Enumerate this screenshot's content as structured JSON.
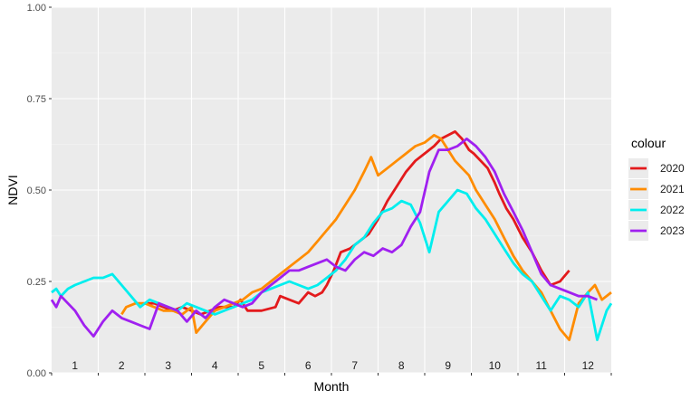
{
  "chart_data": {
    "type": "line",
    "xlabel": "Month",
    "ylabel": "NDVI",
    "ylim": [
      0,
      1
    ],
    "xlim": [
      0,
      12
    ],
    "yticks": [
      0,
      0.25,
      0.5,
      0.75,
      1
    ],
    "ytick_labels": [
      "0.00",
      "0.25",
      "0.50",
      "0.75",
      "1.00"
    ],
    "month_labels": [
      "1",
      "2",
      "3",
      "4",
      "5",
      "6",
      "7",
      "8",
      "9",
      "10",
      "11",
      "12"
    ],
    "grid": true,
    "legend": {
      "title": "colour",
      "position": "right"
    },
    "series": [
      {
        "name": "2020",
        "color": "#e31a1c",
        "x": [
          2.0,
          2.2,
          2.4,
          2.6,
          2.8,
          3.0,
          3.2,
          3.4,
          3.6,
          3.9,
          4.05,
          4.2,
          4.5,
          4.8,
          4.9,
          5.1,
          5.3,
          5.5,
          5.65,
          5.8,
          5.9,
          6.05,
          6.2,
          6.4,
          6.6,
          6.8,
          7.0,
          7.2,
          7.4,
          7.6,
          7.8,
          8.0,
          8.2,
          8.35,
          8.5,
          8.65,
          8.8,
          8.95,
          9.05,
          9.2,
          9.35,
          9.5,
          9.6,
          9.75,
          9.9,
          10.1,
          10.3,
          10.5,
          10.7,
          10.9,
          11.1
        ],
        "y": [
          0.19,
          0.19,
          0.18,
          0.17,
          0.18,
          0.17,
          0.16,
          0.17,
          0.18,
          0.18,
          0.2,
          0.17,
          0.17,
          0.18,
          0.21,
          0.2,
          0.19,
          0.22,
          0.21,
          0.22,
          0.24,
          0.28,
          0.33,
          0.34,
          0.36,
          0.38,
          0.42,
          0.47,
          0.51,
          0.55,
          0.58,
          0.6,
          0.62,
          0.64,
          0.65,
          0.66,
          0.64,
          0.61,
          0.6,
          0.58,
          0.56,
          0.52,
          0.49,
          0.45,
          0.42,
          0.37,
          0.33,
          0.28,
          0.24,
          0.25,
          0.28
        ]
      },
      {
        "name": "2021",
        "color": "#ff8c00",
        "x": [
          1.5,
          1.6,
          1.8,
          2.0,
          2.2,
          2.4,
          2.6,
          2.8,
          3.0,
          3.1,
          3.3,
          3.5,
          3.7,
          3.9,
          4.1,
          4.3,
          4.5,
          4.7,
          4.9,
          5.1,
          5.3,
          5.5,
          5.7,
          5.9,
          6.1,
          6.3,
          6.5,
          6.7,
          6.85,
          7.0,
          7.2,
          7.4,
          7.6,
          7.8,
          8.0,
          8.2,
          8.35,
          8.5,
          8.65,
          8.8,
          8.95,
          9.1,
          9.3,
          9.5,
          9.7,
          9.9,
          10.1,
          10.3,
          10.5,
          10.7,
          10.9,
          11.1,
          11.3,
          11.5,
          11.65,
          11.8,
          12.0
        ],
        "y": [
          0.16,
          0.18,
          0.19,
          0.19,
          0.18,
          0.17,
          0.17,
          0.16,
          0.18,
          0.11,
          0.14,
          0.17,
          0.18,
          0.19,
          0.2,
          0.22,
          0.23,
          0.25,
          0.27,
          0.29,
          0.31,
          0.33,
          0.36,
          0.39,
          0.42,
          0.46,
          0.5,
          0.55,
          0.59,
          0.54,
          0.56,
          0.58,
          0.6,
          0.62,
          0.63,
          0.65,
          0.64,
          0.61,
          0.58,
          0.56,
          0.54,
          0.5,
          0.46,
          0.42,
          0.37,
          0.32,
          0.28,
          0.25,
          0.22,
          0.17,
          0.12,
          0.09,
          0.19,
          0.22,
          0.24,
          0.2,
          0.22
        ]
      },
      {
        "name": "2022",
        "color": "#00eeee",
        "x": [
          0.0,
          0.1,
          0.2,
          0.35,
          0.5,
          0.7,
          0.9,
          1.1,
          1.3,
          1.5,
          1.7,
          1.9,
          2.1,
          2.3,
          2.5,
          2.7,
          2.9,
          3.1,
          3.3,
          3.5,
          3.7,
          3.9,
          4.1,
          4.3,
          4.5,
          4.7,
          4.9,
          5.1,
          5.3,
          5.5,
          5.7,
          5.9,
          6.1,
          6.3,
          6.5,
          6.7,
          6.9,
          7.1,
          7.3,
          7.5,
          7.7,
          7.9,
          8.1,
          8.3,
          8.5,
          8.7,
          8.9,
          9.1,
          9.3,
          9.5,
          9.7,
          9.9,
          10.1,
          10.3,
          10.5,
          10.7,
          10.9,
          11.1,
          11.3,
          11.5,
          11.7,
          11.9,
          12.0
        ],
        "y": [
          0.22,
          0.23,
          0.21,
          0.23,
          0.24,
          0.25,
          0.26,
          0.26,
          0.27,
          0.24,
          0.21,
          0.18,
          0.2,
          0.19,
          0.18,
          0.17,
          0.19,
          0.18,
          0.17,
          0.16,
          0.17,
          0.18,
          0.19,
          0.2,
          0.22,
          0.23,
          0.24,
          0.25,
          0.24,
          0.23,
          0.24,
          0.26,
          0.28,
          0.31,
          0.35,
          0.37,
          0.41,
          0.44,
          0.45,
          0.47,
          0.46,
          0.41,
          0.33,
          0.44,
          0.47,
          0.5,
          0.49,
          0.45,
          0.42,
          0.38,
          0.34,
          0.3,
          0.27,
          0.25,
          0.21,
          0.17,
          0.21,
          0.2,
          0.18,
          0.22,
          0.09,
          0.17,
          0.19
        ]
      },
      {
        "name": "2023",
        "color": "#a020f0",
        "x": [
          0.0,
          0.1,
          0.2,
          0.35,
          0.5,
          0.7,
          0.9,
          1.1,
          1.3,
          1.5,
          1.7,
          1.9,
          2.1,
          2.3,
          2.5,
          2.7,
          2.9,
          3.1,
          3.3,
          3.5,
          3.7,
          3.9,
          4.1,
          4.3,
          4.5,
          4.7,
          4.9,
          5.1,
          5.3,
          5.5,
          5.7,
          5.9,
          6.1,
          6.3,
          6.5,
          6.7,
          6.9,
          7.1,
          7.3,
          7.5,
          7.7,
          7.9,
          8.1,
          8.3,
          8.5,
          8.7,
          8.9,
          9.1,
          9.3,
          9.5,
          9.7,
          9.9,
          10.1,
          10.3,
          10.5,
          10.7,
          10.9,
          11.1,
          11.3,
          11.5,
          11.7
        ],
        "y": [
          0.2,
          0.18,
          0.21,
          0.19,
          0.17,
          0.13,
          0.1,
          0.14,
          0.17,
          0.15,
          0.14,
          0.13,
          0.12,
          0.19,
          0.18,
          0.17,
          0.14,
          0.17,
          0.15,
          0.18,
          0.2,
          0.19,
          0.18,
          0.19,
          0.22,
          0.24,
          0.26,
          0.28,
          0.28,
          0.29,
          0.3,
          0.31,
          0.29,
          0.28,
          0.31,
          0.33,
          0.32,
          0.34,
          0.33,
          0.35,
          0.4,
          0.44,
          0.55,
          0.61,
          0.61,
          0.62,
          0.64,
          0.62,
          0.59,
          0.55,
          0.49,
          0.44,
          0.39,
          0.33,
          0.27,
          0.24,
          0.23,
          0.22,
          0.21,
          0.21,
          0.2
        ]
      }
    ]
  }
}
